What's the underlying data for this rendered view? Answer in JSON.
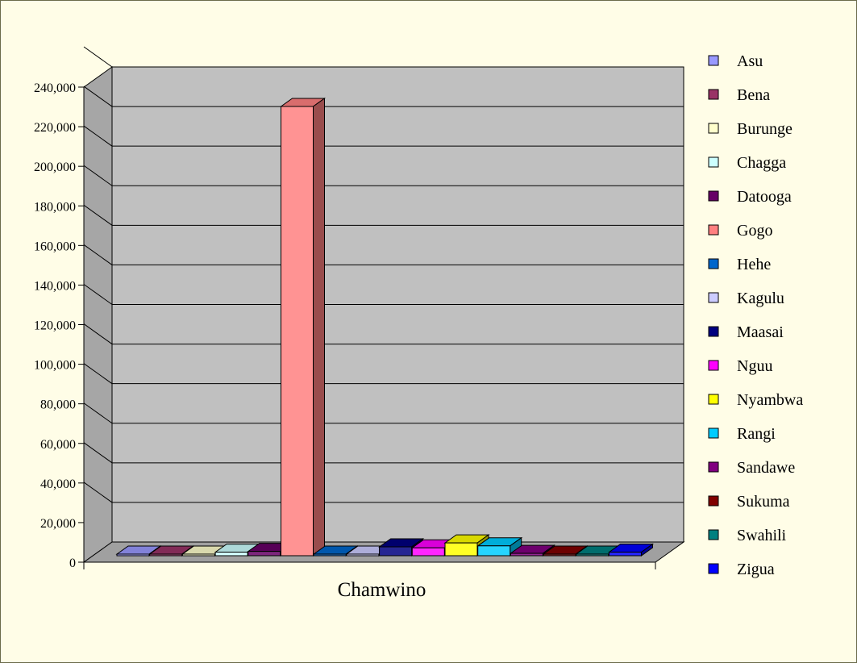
{
  "chart_data": {
    "type": "bar",
    "style": "3d-clustered-column",
    "title": "",
    "xlabel": "",
    "ylabel": "",
    "categories": [
      "Chamwino"
    ],
    "ylim": [
      0,
      240000
    ],
    "y_ticks": [
      0,
      20000,
      40000,
      60000,
      80000,
      100000,
      120000,
      140000,
      160000,
      180000,
      200000,
      220000,
      240000
    ],
    "y_tick_labels": [
      "0",
      "20,000",
      "40,000",
      "60,000",
      "80,000",
      "100,000",
      "120,000",
      "140,000",
      "160,000",
      "180,000",
      "200,000",
      "220,000",
      "240,000"
    ],
    "grid": true,
    "legend_position": "right",
    "series": [
      {
        "name": "Asu",
        "values": [
          150
        ],
        "color": "#9999ff"
      },
      {
        "name": "Bena",
        "values": [
          200
        ],
        "color": "#993366"
      },
      {
        "name": "Burunge",
        "values": [
          150
        ],
        "color": "#ffffcc"
      },
      {
        "name": "Chagga",
        "values": [
          1800
        ],
        "color": "#ccffff"
      },
      {
        "name": "Datooga",
        "values": [
          2200
        ],
        "color": "#660066"
      },
      {
        "name": "Gogo",
        "values": [
          228000
        ],
        "color": "#ff8080"
      },
      {
        "name": "Hehe",
        "values": [
          700
        ],
        "color": "#0066cc"
      },
      {
        "name": "Kagulu",
        "values": [
          350
        ],
        "color": "#ccccff"
      },
      {
        "name": "Maasai",
        "values": [
          4500
        ],
        "color": "#000080"
      },
      {
        "name": "Nguu",
        "values": [
          4000
        ],
        "color": "#ff00ff"
      },
      {
        "name": "Nyambwa",
        "values": [
          6500
        ],
        "color": "#ffff00"
      },
      {
        "name": "Rangi",
        "values": [
          5000
        ],
        "color": "#00ccff"
      },
      {
        "name": "Sandawe",
        "values": [
          1200
        ],
        "color": "#800080"
      },
      {
        "name": "Sukuma",
        "values": [
          300
        ],
        "color": "#800000"
      },
      {
        "name": "Swahili",
        "values": [
          300
        ],
        "color": "#008080"
      },
      {
        "name": "Zigua",
        "values": [
          1800
        ],
        "color": "#0000ff"
      }
    ]
  }
}
